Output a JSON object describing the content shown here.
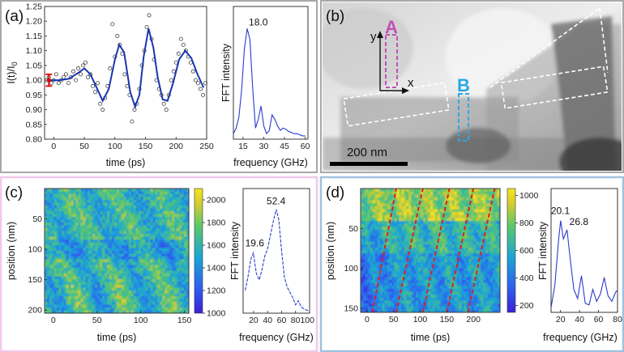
{
  "panels": {
    "a": {
      "label": "(a)",
      "border": "#a8a8a8"
    },
    "b": {
      "label": "(b)",
      "border": "#a8a8a8"
    },
    "c": {
      "label": "(c)",
      "border": "#f2c8ea"
    },
    "d": {
      "label": "(d)",
      "border": "#9fc2e0"
    }
  },
  "colors": {
    "fit_line": "#1a36b0",
    "marker_A": "#c050b8",
    "marker_B": "#2aa8e6",
    "error_bar": "#e00000",
    "fringe": "#e02020",
    "fft_line": "#2a3bd0"
  },
  "chart_data": [
    {
      "id": "a_time",
      "type": "scatter",
      "xlabel": "time (ps)",
      "ylabel": "I(t)/I",
      "ylabel_sub": "0",
      "xlim": [
        -15,
        250
      ],
      "ylim": [
        0.8,
        1.25
      ],
      "xticks": [
        "0",
        "50",
        "100",
        "150",
        "200",
        "250"
      ],
      "xtick_values": [
        0,
        50,
        100,
        150,
        200,
        250
      ],
      "yticks": [
        "0.80",
        "0.85",
        "0.90",
        "0.95",
        "1.00",
        "1.05",
        "1.10",
        "1.15",
        "1.20",
        "1.25"
      ],
      "ytick_values": [
        0.8,
        0.85,
        0.9,
        0.95,
        1.0,
        1.05,
        1.1,
        1.15,
        1.2,
        1.25
      ],
      "fit": {
        "x": [
          -10,
          10,
          25,
          40,
          50,
          60,
          70,
          80,
          90,
          100,
          107,
          115,
          125,
          133,
          140,
          147,
          155,
          163,
          170,
          178,
          186,
          195,
          205,
          215,
          225,
          235,
          245
        ],
        "y": [
          1.0,
          1.0,
          1.005,
          1.025,
          1.04,
          1.02,
          0.975,
          0.93,
          0.97,
          1.07,
          1.12,
          1.095,
          0.96,
          0.91,
          0.95,
          1.08,
          1.175,
          1.11,
          1.01,
          0.935,
          0.93,
          0.99,
          1.07,
          1.1,
          1.075,
          1.02,
          0.975
        ]
      },
      "points": {
        "x": [
          -12,
          -8,
          -4,
          0,
          4,
          8,
          12,
          16,
          20,
          24,
          28,
          32,
          36,
          40,
          44,
          48,
          52,
          56,
          60,
          64,
          68,
          72,
          76,
          80,
          84,
          88,
          92,
          96,
          100,
          104,
          108,
          112,
          116,
          120,
          124,
          128,
          132,
          136,
          140,
          144,
          148,
          152,
          156,
          160,
          164,
          168,
          172,
          176,
          180,
          184,
          188,
          192,
          196,
          200,
          204,
          208,
          212,
          216,
          220,
          224,
          228,
          232,
          236,
          240,
          244,
          248
        ],
        "y": [
          1.0,
          1.01,
          0.99,
          1.0,
          1.02,
          0.99,
          1.0,
          1.01,
          1.02,
          0.99,
          1.01,
          1.03,
          1.0,
          1.04,
          1.02,
          1.05,
          1.06,
          1.01,
          1.02,
          0.98,
          0.96,
          0.99,
          0.92,
          0.9,
          0.94,
          0.98,
          1.04,
          1.19,
          1.08,
          1.15,
          1.12,
          1.09,
          1.02,
          0.98,
          0.95,
          0.86,
          0.9,
          0.92,
          0.97,
          1.05,
          1.1,
          1.18,
          1.22,
          1.14,
          1.07,
          1.0,
          0.97,
          0.95,
          0.92,
          0.9,
          0.95,
          1.0,
          1.03,
          1.06,
          1.09,
          1.14,
          1.12,
          1.1,
          1.08,
          1.06,
          1.03,
          1.0,
          0.99,
          0.97,
          0.95,
          0.99
        ]
      },
      "error_bar": {
        "x": -8,
        "y": 1.0,
        "half": 0.02
      }
    },
    {
      "id": "a_fft",
      "type": "line",
      "xlabel": "frequency (GHz)",
      "ylabel": "FFT intensity",
      "xlim": [
        8,
        62
      ],
      "ylim": [
        0,
        1.2
      ],
      "xticks": [
        "15",
        "30",
        "45",
        "60"
      ],
      "xtick_values": [
        15,
        30,
        45,
        60
      ],
      "peak_label": "18.0",
      "peak": {
        "x": 18,
        "y": 1.0
      },
      "x": [
        8,
        10,
        12,
        14,
        16,
        18,
        20,
        22,
        24,
        26,
        28,
        30,
        32,
        34,
        36,
        38,
        40,
        42,
        44,
        46,
        48,
        50,
        52,
        54,
        56,
        58,
        60
      ],
      "y": [
        0.05,
        0.1,
        0.2,
        0.45,
        0.82,
        1.0,
        0.9,
        0.45,
        0.1,
        0.18,
        0.3,
        0.12,
        0.05,
        0.08,
        0.22,
        0.18,
        0.12,
        0.08,
        0.1,
        0.09,
        0.07,
        0.06,
        0.05,
        0.05,
        0.04,
        0.03,
        0.03
      ]
    },
    {
      "id": "b_image",
      "type": "image",
      "marker_A": "A",
      "marker_B": "B",
      "axis_x": "x",
      "axis_y": "y",
      "scalebar_label": "200 nm"
    },
    {
      "id": "c_heatmap",
      "type": "heatmap",
      "xlabel": "time (ps)",
      "ylabel": "position (nm)",
      "xlim": [
        -10,
        155
      ],
      "ylim": [
        0,
        205
      ],
      "xticks": [
        "0",
        "50",
        "100",
        "150"
      ],
      "xtick_values": [
        0,
        50,
        100,
        150
      ],
      "yticks": [
        "50",
        "100",
        "150",
        "200"
      ],
      "ytick_values": [
        50,
        100,
        150,
        200
      ],
      "colorbar": {
        "min": 1000,
        "max": 2100,
        "ticks": [
          "1000",
          "1200",
          "1400",
          "1600",
          "1800",
          "2000"
        ],
        "tick_values": [
          1000,
          1200,
          1400,
          1600,
          1800,
          2000
        ]
      }
    },
    {
      "id": "c_fft",
      "type": "line",
      "xlabel": "frequency (GHz)",
      "ylabel": "FFT intensity",
      "xlim": [
        5,
        100
      ],
      "ylim": [
        0,
        1.2
      ],
      "xticks": [
        "20",
        "40",
        "60",
        "80",
        "100"
      ],
      "xtick_labels_joined": "80100",
      "xtick_values": [
        20,
        40,
        60,
        80,
        100
      ],
      "peaks": [
        {
          "label": "19.6",
          "x": 19.6,
          "y": 0.58
        },
        {
          "label": "52.4",
          "x": 52.4,
          "y": 1.0
        }
      ],
      "x": [
        8,
        12,
        16,
        19.6,
        24,
        28,
        32,
        36,
        40,
        44,
        48,
        52.4,
        56,
        60,
        64,
        68,
        72,
        76,
        80,
        84,
        88,
        92,
        96,
        100
      ],
      "y": [
        0.22,
        0.35,
        0.52,
        0.58,
        0.38,
        0.32,
        0.42,
        0.55,
        0.62,
        0.75,
        0.88,
        1.0,
        0.9,
        0.6,
        0.35,
        0.25,
        0.2,
        0.15,
        0.08,
        0.12,
        0.06,
        0.04,
        0.03,
        0.02
      ]
    },
    {
      "id": "d_heatmap",
      "type": "heatmap",
      "xlabel": "time (ps)",
      "ylabel": "position (nm)",
      "xlim": [
        -12,
        250
      ],
      "ylim": [
        0,
        155
      ],
      "xticks": [
        "0",
        "50",
        "100",
        "150",
        "200"
      ],
      "xtick_values": [
        0,
        50,
        100,
        150,
        200
      ],
      "yticks": [
        "50",
        "100",
        "150"
      ],
      "ytick_values": [
        50,
        100,
        150
      ],
      "colorbar": {
        "min": 150,
        "max": 1050,
        "ticks": [
          "200",
          "400",
          "600",
          "800",
          "1000"
        ],
        "tick_values": [
          200,
          400,
          600,
          800,
          1000
        ]
      },
      "fringes": [
        [
          10,
          155,
          55,
          0
        ],
        [
          55,
          155,
          105,
          0
        ],
        [
          105,
          155,
          155,
          0
        ],
        [
          150,
          155,
          200,
          0
        ],
        [
          190,
          155,
          240,
          0
        ]
      ]
    },
    {
      "id": "d_fft",
      "type": "line",
      "xlabel": "frequency (GHz)",
      "ylabel": "FFT intensity",
      "xlim": [
        10,
        80
      ],
      "ylim": [
        0,
        1.35
      ],
      "xticks": [
        "20",
        "40",
        "60",
        "80"
      ],
      "xtick_values": [
        20,
        40,
        60,
        80
      ],
      "peaks": [
        {
          "label": "20.1",
          "x": 20.1,
          "y": 1.0
        },
        {
          "label": "26.8",
          "x": 26.8,
          "y": 0.9
        }
      ],
      "x": [
        10,
        14,
        18,
        20.1,
        23,
        26.8,
        30,
        34,
        38,
        42,
        46,
        50,
        54,
        58,
        62,
        66,
        70,
        74,
        78,
        80
      ],
      "y": [
        0.05,
        0.3,
        0.8,
        1.0,
        0.8,
        0.9,
        0.6,
        0.25,
        0.15,
        0.4,
        0.1,
        0.08,
        0.25,
        0.12,
        0.2,
        0.38,
        0.18,
        0.12,
        0.22,
        0.24
      ]
    }
  ]
}
